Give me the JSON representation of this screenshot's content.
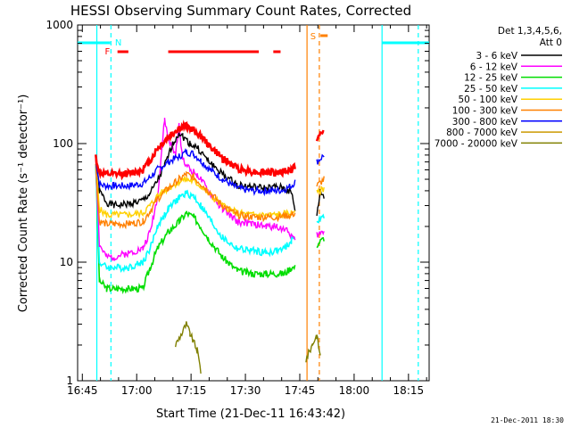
{
  "chart_data": {
    "type": "line",
    "title": "HESSI Observing Summary Count Rates, Corrected",
    "xlabel": "Start Time (21-Dec-11 16:43:42)",
    "ylabel": "Corrected Count Rate (s⁻¹ detector⁻¹)",
    "x_unit": "minutes after 16:43:42",
    "xlim": [
      0,
      97
    ],
    "ylim": [
      1,
      1000
    ],
    "yscale": "log",
    "xticks": [
      "16:45",
      "17:00",
      "17:15",
      "17:30",
      "17:45",
      "18:00",
      "18:15"
    ],
    "yticks": [
      "1",
      "10",
      "100",
      "1000"
    ],
    "legend_title": [
      "Det 1,3,4,5,6,",
      "Att 0"
    ],
    "legend_position": "right",
    "footer": "21-Dec-2011 18:30",
    "series": [
      {
        "name": "3 - 6 keV",
        "color": "#000000",
        "points": [
          [
            5,
            80
          ],
          [
            6,
            40
          ],
          [
            8,
            32
          ],
          [
            10,
            30
          ],
          [
            14,
            31
          ],
          [
            18,
            33
          ],
          [
            20,
            38
          ],
          [
            22,
            48
          ],
          [
            24,
            65
          ],
          [
            26,
            95
          ],
          [
            28,
            125
          ],
          [
            29,
            115
          ],
          [
            31,
            100
          ],
          [
            33,
            92
          ],
          [
            36,
            72
          ],
          [
            40,
            55
          ],
          [
            44,
            45
          ],
          [
            48,
            43
          ],
          [
            52,
            42
          ],
          [
            55,
            43
          ],
          [
            57,
            42
          ],
          [
            59,
            38
          ],
          [
            60,
            28
          ],
          [
            66,
            24
          ],
          [
            67,
            40
          ],
          [
            68,
            35
          ]
        ]
      },
      {
        "name": "6 - 12 keV",
        "color": "#ff00ff",
        "points": [
          [
            5,
            75
          ],
          [
            6,
            14
          ],
          [
            8,
            11
          ],
          [
            10,
            11
          ],
          [
            14,
            12
          ],
          [
            18,
            13
          ],
          [
            20,
            18
          ],
          [
            22,
            35
          ],
          [
            23,
            75
          ],
          [
            24,
            160
          ],
          [
            25,
            110
          ],
          [
            27,
            80
          ],
          [
            28,
            140
          ],
          [
            29,
            75
          ],
          [
            31,
            60
          ],
          [
            33,
            55
          ],
          [
            36,
            40
          ],
          [
            40,
            28
          ],
          [
            44,
            22
          ],
          [
            48,
            21
          ],
          [
            52,
            20
          ],
          [
            55,
            20
          ],
          [
            57,
            19
          ],
          [
            59,
            17
          ],
          [
            60,
            15
          ],
          [
            66,
            17
          ],
          [
            68,
            18
          ]
        ]
      },
      {
        "name": "12 - 25 keV",
        "color": "#00dd00",
        "points": [
          [
            5,
            70
          ],
          [
            6,
            7
          ],
          [
            8,
            6
          ],
          [
            10,
            6
          ],
          [
            14,
            6
          ],
          [
            18,
            6
          ],
          [
            20,
            9
          ],
          [
            22,
            13
          ],
          [
            25,
            18
          ],
          [
            28,
            22
          ],
          [
            30,
            26
          ],
          [
            32,
            24
          ],
          [
            34,
            20
          ],
          [
            36,
            16
          ],
          [
            40,
            11
          ],
          [
            44,
            8.5
          ],
          [
            48,
            8
          ],
          [
            52,
            8
          ],
          [
            55,
            8
          ],
          [
            57,
            8
          ],
          [
            59,
            9
          ],
          [
            60,
            9
          ],
          [
            66,
            14
          ],
          [
            68,
            16
          ]
        ]
      },
      {
        "name": "25 - 50 keV",
        "color": "#00ffff",
        "points": [
          [
            5,
            70
          ],
          [
            6,
            10
          ],
          [
            8,
            9
          ],
          [
            10,
            9
          ],
          [
            14,
            9
          ],
          [
            18,
            10
          ],
          [
            20,
            13
          ],
          [
            22,
            20
          ],
          [
            25,
            28
          ],
          [
            28,
            35
          ],
          [
            30,
            38
          ],
          [
            32,
            36
          ],
          [
            34,
            30
          ],
          [
            36,
            24
          ],
          [
            40,
            16
          ],
          [
            44,
            13
          ],
          [
            48,
            12.5
          ],
          [
            52,
            12
          ],
          [
            55,
            12.5
          ],
          [
            57,
            13
          ],
          [
            59,
            15
          ],
          [
            60,
            17
          ],
          [
            66,
            22
          ],
          [
            68,
            24
          ]
        ]
      },
      {
        "name": "50 - 100 keV",
        "color": "#ffd000",
        "points": [
          [
            5,
            70
          ],
          [
            6,
            28
          ],
          [
            8,
            25
          ],
          [
            10,
            25
          ],
          [
            14,
            25
          ],
          [
            18,
            26
          ],
          [
            20,
            30
          ],
          [
            22,
            36
          ],
          [
            25,
            42
          ],
          [
            28,
            48
          ],
          [
            30,
            50
          ],
          [
            32,
            48
          ],
          [
            34,
            44
          ],
          [
            36,
            38
          ],
          [
            40,
            30
          ],
          [
            44,
            26
          ],
          [
            48,
            25
          ],
          [
            52,
            25
          ],
          [
            55,
            25
          ],
          [
            57,
            25.5
          ],
          [
            59,
            26
          ],
          [
            60,
            28
          ],
          [
            66,
            38
          ],
          [
            68,
            42
          ]
        ]
      },
      {
        "name": "100 - 300 keV",
        "color": "#ff8000",
        "points": [
          [
            5,
            65
          ],
          [
            6,
            22
          ],
          [
            8,
            21
          ],
          [
            10,
            21
          ],
          [
            14,
            21
          ],
          [
            18,
            22
          ],
          [
            20,
            27
          ],
          [
            22,
            34
          ],
          [
            25,
            42
          ],
          [
            28,
            50
          ],
          [
            30,
            55
          ],
          [
            32,
            52
          ],
          [
            34,
            46
          ],
          [
            36,
            40
          ],
          [
            40,
            30
          ],
          [
            44,
            25
          ],
          [
            48,
            24
          ],
          [
            52,
            24
          ],
          [
            55,
            24
          ],
          [
            57,
            24.5
          ],
          [
            59,
            25
          ],
          [
            60,
            26
          ],
          [
            66,
            44
          ],
          [
            68,
            50
          ]
        ]
      },
      {
        "name": "300 - 800 keV",
        "color": "#0000ff",
        "points": [
          [
            5,
            75
          ],
          [
            6,
            45
          ],
          [
            8,
            44
          ],
          [
            10,
            44
          ],
          [
            14,
            44
          ],
          [
            18,
            46
          ],
          [
            20,
            52
          ],
          [
            22,
            60
          ],
          [
            25,
            70
          ],
          [
            28,
            78
          ],
          [
            30,
            85
          ],
          [
            32,
            82
          ],
          [
            34,
            72
          ],
          [
            36,
            62
          ],
          [
            40,
            50
          ],
          [
            44,
            42
          ],
          [
            48,
            40
          ],
          [
            52,
            40
          ],
          [
            55,
            40
          ],
          [
            57,
            41
          ],
          [
            59,
            44
          ],
          [
            60,
            48
          ],
          [
            66,
            70
          ],
          [
            68,
            80
          ]
        ]
      },
      {
        "name": "800 - 7000 keV",
        "color": "#cc9900",
        "points": [
          [
            55,
            40
          ],
          [
            56,
            40
          ]
        ]
      },
      {
        "name": "7000 - 20000 keV",
        "color": "#808000",
        "points": [
          [
            27,
            2
          ],
          [
            29,
            2.6
          ],
          [
            30,
            3
          ],
          [
            31,
            2.5
          ],
          [
            33,
            1.8
          ],
          [
            34,
            1.2
          ],
          [
            63,
            1.5
          ],
          [
            65,
            2.1
          ],
          [
            66,
            2.4
          ],
          [
            67,
            1.6
          ]
        ]
      }
    ],
    "red_extra_points": [
      [
        5,
        78
      ],
      [
        6,
        57
      ],
      [
        8,
        55
      ],
      [
        10,
        55
      ],
      [
        14,
        56
      ],
      [
        18,
        60
      ],
      [
        20,
        72
      ],
      [
        22,
        90
      ],
      [
        24,
        105
      ],
      [
        26,
        120
      ],
      [
        28,
        135
      ],
      [
        30,
        140
      ],
      [
        32,
        130
      ],
      [
        34,
        115
      ],
      [
        36,
        98
      ],
      [
        40,
        75
      ],
      [
        44,
        62
      ],
      [
        48,
        58
      ],
      [
        52,
        57
      ],
      [
        55,
        57
      ],
      [
        57,
        58
      ],
      [
        59,
        60
      ],
      [
        60,
        65
      ],
      [
        66,
        110
      ],
      [
        68,
        125
      ]
    ],
    "red_extra_name": "",
    "flag_bars": {
      "cyan_attenuator": [
        [
          0,
          9
        ],
        [
          84,
          97
        ]
      ],
      "red_flare": [
        [
          11,
          14
        ],
        [
          25,
          50
        ],
        [
          54,
          56
        ]
      ],
      "orange_saa": [
        [
          67,
          69
        ]
      ]
    },
    "flag_labels": {
      "n": "N",
      "f": "F",
      "s": "S"
    },
    "vertical_markers_solid": {
      "cyan": [
        5.3,
        84
      ],
      "orange": [
        63.3
      ]
    },
    "vertical_markers_dashed": {
      "cyan": [
        9.2,
        94
      ],
      "orange": [
        66.7
      ]
    }
  }
}
